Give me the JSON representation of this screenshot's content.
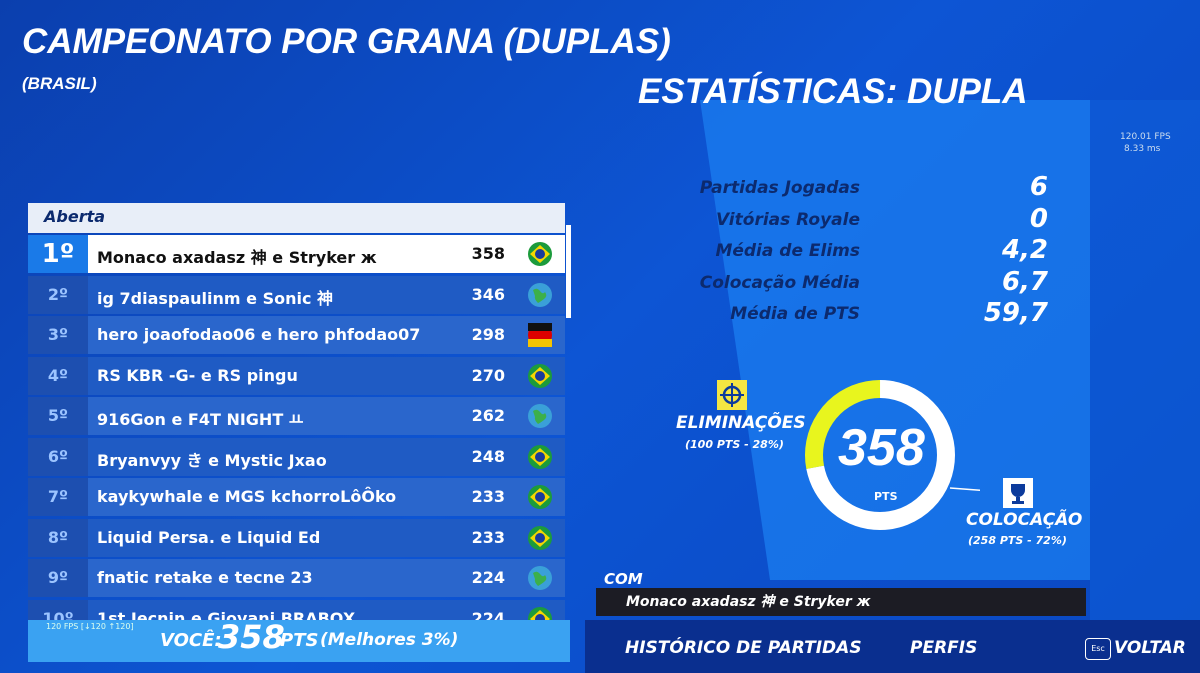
{
  "header": {
    "title": "CAMPEONATO POR GRANA (DUPLAS)",
    "subtitle": "(BRASIL)",
    "stats_title": "ESTATÍSTICAS: DUPLA",
    "fps": "120.01 FPS",
    "ms": "8.33 ms"
  },
  "leaderboard": {
    "tab": "Aberta",
    "rows": [
      [
        "1º",
        "Monaco axadasz 神 e Stryker ж",
        "358"
      ],
      [
        "2º",
        "ig 7diaspaulinm e Sonic 神",
        "346"
      ],
      [
        "3º",
        "hero joaofodao06 e hero phfodao07",
        "298"
      ],
      [
        "4º",
        "RS KBR -G- e RS pingu",
        "270"
      ],
      [
        "5º",
        "916Gon e F4T NIGHT ㅛ",
        "262"
      ],
      [
        "6º",
        "Bryanvyy き e Mystic Jxao",
        "248"
      ],
      [
        "7º",
        "kaykywhale e MGS kchorroLôÔko",
        "233"
      ],
      [
        "8º",
        "Liquid Persa. e Liquid Ed",
        "233"
      ],
      [
        "9º",
        "fnatic retake e tecne 23",
        "224"
      ],
      [
        "10º",
        "1st Iecnin e Giovani BRABOX",
        "224"
      ]
    ]
  },
  "footer": {
    "fps": "120 FPS [↓120 ↑120]",
    "you": "VOCÊ:",
    "points": "358",
    "pts": "PTS",
    "rank": "(Melhores 3%)"
  },
  "stats": {
    "rows": [
      [
        "Partidas Jogadas",
        "6"
      ],
      [
        "Vitórias Royale",
        "0"
      ],
      [
        "Média de Elims",
        "4,2"
      ],
      [
        "Colocação Média",
        "6,7"
      ],
      [
        "Média de PTS",
        "59,7"
      ]
    ]
  },
  "donut": {
    "total": "358",
    "unit": "PTS",
    "eliminations": {
      "label": "ELIMINAÇÕES",
      "detail": "(100 PTS - 28%)",
      "share": 28
    },
    "placement": {
      "label": "COLOCAÇÃO",
      "detail": "(258 PTS - 72%)",
      "share": 72
    }
  },
  "team": {
    "label": "COM",
    "names": "Monaco axadasz 神 e Stryker ж"
  },
  "nav": {
    "history": "HISTÓRICO DE PARTIDAS",
    "profiles": "PERFIS",
    "esc": "Esc",
    "back": "VOLTAR"
  }
}
